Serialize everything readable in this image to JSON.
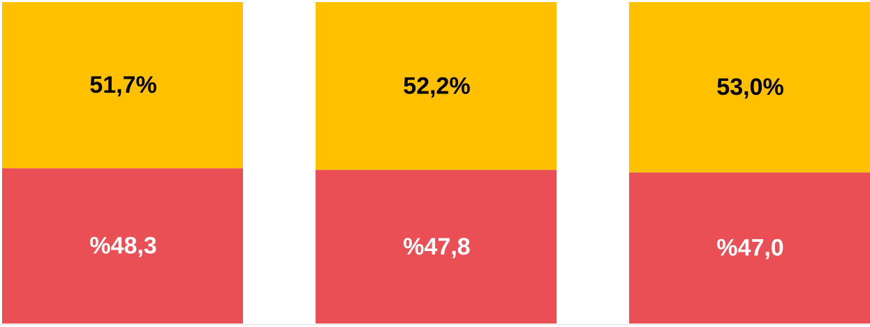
{
  "chart_data": {
    "type": "bar",
    "stacked": true,
    "categories": [
      null,
      null,
      null
    ],
    "series": [
      {
        "color": "#e94f55",
        "values": [
          48.3,
          47.8,
          47.0
        ],
        "value_labels": [
          "%48,3",
          "%47,8",
          "%47,0"
        ]
      },
      {
        "color": "#ffc000",
        "values": [
          51.7,
          52.2,
          53.0
        ],
        "value_labels": [
          "51,7%",
          "52,2%",
          "53,0%"
        ]
      }
    ],
    "ylim": [
      0,
      100
    ]
  }
}
